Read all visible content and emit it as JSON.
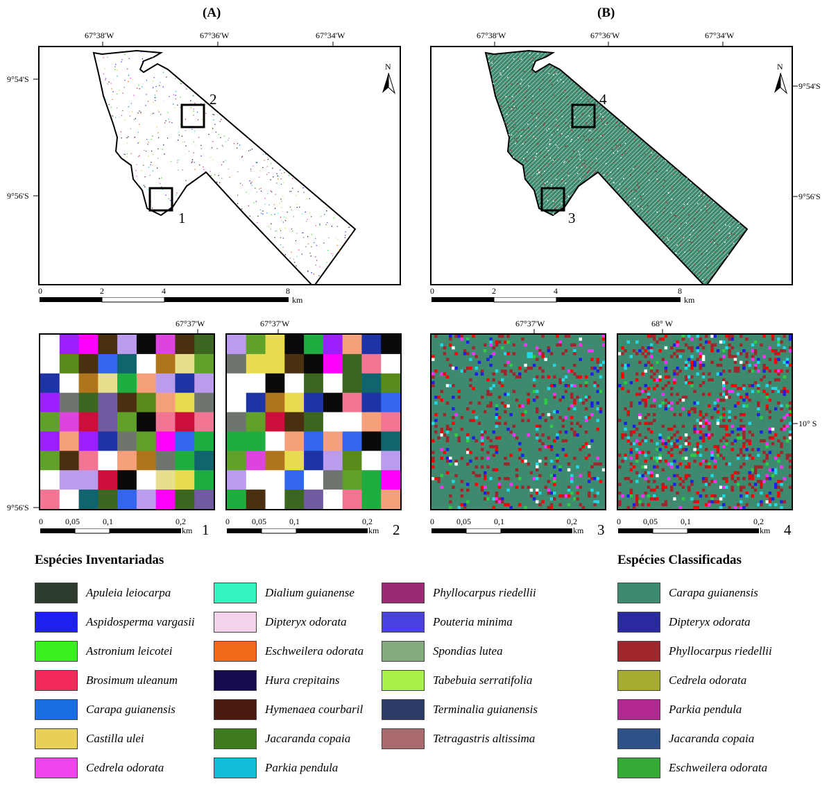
{
  "panels": {
    "a_label": "(A)",
    "b_label": "(B)"
  },
  "map_a": {
    "lon_ticks": [
      "67°38'W",
      "67°36'W",
      "67°34'W"
    ],
    "lat_ticks": [
      "9°54'S",
      "9°56'S"
    ],
    "box_labels": [
      "1",
      "2"
    ],
    "north": "N",
    "scale_labels": [
      "0",
      "2",
      "4",
      "8"
    ],
    "scale_unit": "km"
  },
  "map_b": {
    "lon_ticks": [
      "67°38'W",
      "67°36'W",
      "67°34'W"
    ],
    "lat_ticks": [
      "9°54'S",
      "9°56'S"
    ],
    "box_labels": [
      "3",
      "4"
    ],
    "north": "N",
    "scale_labels": [
      "0",
      "2",
      "4",
      "8"
    ],
    "scale_unit": "km"
  },
  "insets": [
    {
      "id": "1",
      "top_tick": "67°37'W",
      "left_tick": "9°56'S",
      "right_tick": "",
      "scale_labels": [
        "0",
        "0,05",
        "0,1",
        "0,2"
      ],
      "scale_unit": "km"
    },
    {
      "id": "2",
      "top_tick": "67°37'W",
      "left_tick": "",
      "right_tick": "",
      "scale_labels": [
        "0",
        "0,05",
        "0,1",
        "0,2"
      ],
      "scale_unit": "km"
    },
    {
      "id": "3",
      "top_tick": "67°37'W",
      "left_tick": "",
      "right_tick": "",
      "scale_labels": [
        "0",
        "0,05",
        "0,1",
        "0,2"
      ],
      "scale_unit": "km"
    },
    {
      "id": "4",
      "top_tick": "68° W",
      "left_tick": "",
      "right_tick": "10° S",
      "scale_labels": [
        "0",
        "0,05",
        "0,1",
        "0,2"
      ],
      "scale_unit": "km"
    }
  ],
  "legend_inventoried": {
    "title": "Espécies Inventariadas",
    "items": [
      {
        "name": "Apuleia leiocarpa",
        "color": "#2e3c30"
      },
      {
        "name": "Aspidosperma vargasii",
        "color": "#1f1ff0"
      },
      {
        "name": "Astronium leicotei",
        "color": "#3af020"
      },
      {
        "name": "Brosimum uleanum",
        "color": "#f2295a"
      },
      {
        "name": "Carapa guianensis",
        "color": "#1a6ee0"
      },
      {
        "name": "Castilla ulei",
        "color": "#e8d058"
      },
      {
        "name": "Cedrela odorata",
        "color": "#ee44ee"
      },
      {
        "name": "Dialium guianense",
        "color": "#33f5c0"
      },
      {
        "name": "Dipteryx odorata",
        "color": "#f3d2ec"
      },
      {
        "name": "Eschweilera odorata",
        "color": "#f06a1c"
      },
      {
        "name": "Hura crepitains",
        "color": "#140a4e"
      },
      {
        "name": "Hymenaea courbaril",
        "color": "#4a1a0e"
      },
      {
        "name": "Jacaranda copaia",
        "color": "#3e7a1e"
      },
      {
        "name": "Parkia pendula",
        "color": "#12bcd8"
      },
      {
        "name": "Phyllocarpus riedellii",
        "color": "#9a2b72"
      },
      {
        "name": "Pouteria minima",
        "color": "#4a40e0"
      },
      {
        "name": "Spondias lutea",
        "color": "#86aa80"
      },
      {
        "name": "Tabebuia serratifolia",
        "color": "#a8f24a"
      },
      {
        "name": "Terminalia guianensis",
        "color": "#2c3a66"
      },
      {
        "name": "Tetragastris altissima",
        "color": "#a86a6c"
      }
    ]
  },
  "legend_classified": {
    "title": "Espécies Classificadas",
    "items": [
      {
        "name": "Carapa guianensis",
        "color": "#3d8a6e"
      },
      {
        "name": "Dipteryx odorata",
        "color": "#2a2aa0"
      },
      {
        "name": "Phyllocarpus riedellii",
        "color": "#a0262e"
      },
      {
        "name": "Cedrela odorata",
        "color": "#a6ac30"
      },
      {
        "name": "Parkia pendula",
        "color": "#b02890"
      },
      {
        "name": "Jacaranda copaia",
        "color": "#2e5288"
      },
      {
        "name": "Eschweilera odorata",
        "color": "#36aa36"
      }
    ]
  },
  "inset_palette_inventory": [
    "#ffffff",
    "#ffffff",
    "#ffffff",
    "#6e756e",
    "#3c6620",
    "#e8df8e",
    "#e8db50",
    "#dd44dd",
    "#1e33a5",
    "#b0741a",
    "#10646e",
    "#60a12a",
    "#9b1fff",
    "#cc0f3a",
    "#bb9bee",
    "#4a3010",
    "#3366ee",
    "#f5a07a",
    "#f37594",
    "#1fad3f",
    "#0a0a0a",
    "#5a8a1a",
    "#705aa0",
    "#ff00ff"
  ],
  "inset_palette_classified": {
    "base": "#3d8a6e",
    "accents": [
      "#a0262e",
      "#ff0000",
      "#1e1ee6",
      "#22d7e6",
      "#ff30ff",
      "#2ecc40",
      "#fafafa"
    ]
  }
}
